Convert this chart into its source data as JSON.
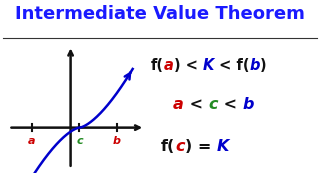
{
  "title": "Intermediate Value Theorem",
  "title_color": "#1a1aff",
  "title_fontsize": 13,
  "background_color": "#ffffff",
  "curve_color": "#0000cc",
  "axis_color": "#111111",
  "formula1": [
    {
      "text": "f(",
      "color": "#111111",
      "italic": false
    },
    {
      "text": "a",
      "color": "#cc0000",
      "italic": true
    },
    {
      "text": ") < ",
      "color": "#111111",
      "italic": false
    },
    {
      "text": "K",
      "color": "#0000cc",
      "italic": true
    },
    {
      "text": " < f(",
      "color": "#111111",
      "italic": false
    },
    {
      "text": "b",
      "color": "#0000cc",
      "italic": true
    },
    {
      "text": ")",
      "color": "#111111",
      "italic": false
    }
  ],
  "formula2": [
    {
      "text": "a",
      "color": "#cc0000",
      "italic": true
    },
    {
      "text": " < ",
      "color": "#111111",
      "italic": false
    },
    {
      "text": "c",
      "color": "#228B22",
      "italic": true
    },
    {
      "text": " < ",
      "color": "#111111",
      "italic": false
    },
    {
      "text": "b",
      "color": "#0000cc",
      "italic": true
    }
  ],
  "formula3": [
    {
      "text": "f(",
      "color": "#111111",
      "italic": false
    },
    {
      "text": "c",
      "color": "#cc0000",
      "italic": true
    },
    {
      "text": ") = ",
      "color": "#111111",
      "italic": false
    },
    {
      "text": "K",
      "color": "#0000cc",
      "italic": true
    }
  ],
  "label_a_color": "#cc0000",
  "label_c_color": "#228B22",
  "label_b_color": "#cc0000"
}
